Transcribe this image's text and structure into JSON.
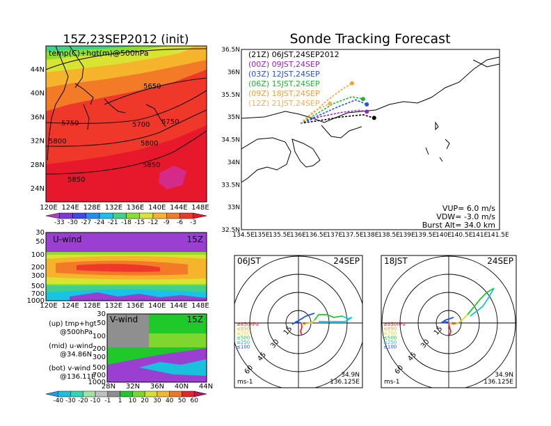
{
  "left": {
    "title": "15Z,23SEP2012 (init)",
    "map_label": "temp(C)+hgt(m)@500hPa",
    "lat_labels": [
      "44N",
      "40N",
      "36N",
      "32N",
      "28N",
      "24N"
    ],
    "lon_labels": [
      "120E",
      "124E",
      "128E",
      "132E",
      "136E",
      "140E",
      "144E",
      "148E"
    ],
    "contour_labels": [
      "5650",
      "5700",
      "5750",
      "5750",
      "5800",
      "5800",
      "5850",
      "5850"
    ],
    "temp_colorbar": {
      "labels": [
        "-33",
        "-30",
        "-27",
        "-24",
        "-21",
        "-18",
        "-15",
        "-12",
        "-9",
        "-6",
        "-3"
      ],
      "colors": [
        "#ad3fc6",
        "#7d38d9",
        "#3f48e8",
        "#1f8ff1",
        "#17c3e6",
        "#3fd08a",
        "#8ddc2e",
        "#d8e431",
        "#f6b42d",
        "#f37a27",
        "#f0382a",
        "#e8182c"
      ]
    },
    "u_panel": {
      "label": "U-wind",
      "time": "15Z",
      "pressure_labels": [
        "30",
        "50",
        "100",
        "200",
        "300",
        "500",
        "700",
        "1000"
      ],
      "lon_labels": [
        "120E",
        "124E",
        "128E",
        "132E",
        "136E",
        "140E",
        "144E",
        "148E"
      ]
    },
    "v_panel": {
      "label": "V-wind",
      "time": "15Z",
      "pressure_labels": [
        "30",
        "50",
        "100",
        "200",
        "300",
        "500",
        "700",
        "1000"
      ],
      "lat_labels": [
        "28N",
        "32N",
        "36N",
        "40N",
        "44N"
      ]
    },
    "legend": [
      {
        "l1": "(up) tmp+hgt",
        "l2": "@500hPa"
      },
      {
        "l1": "(mid) u-wind",
        "l2": "@34.86N"
      },
      {
        "l1": "(bot) v-wind",
        "l2": "@136.11E"
      }
    ],
    "wind_colorbar": {
      "labels": [
        "-40",
        "-30",
        "-20",
        "-10",
        "-1",
        "1",
        "10",
        "20",
        "30",
        "40",
        "50",
        "60"
      ],
      "colors": [
        "#1a9ef0",
        "#19c1dd",
        "#2fd6b2",
        "#9fe3a5",
        "#bfbfbf",
        "#8f8f8f",
        "#1fc92a",
        "#7ed62e",
        "#d4e02f",
        "#f5b72d",
        "#f17628",
        "#e8212b",
        "#b5175a"
      ]
    }
  },
  "track": {
    "title": "Sonde Tracking Forecast",
    "lat_labels": [
      "36.5N",
      "36N",
      "35.5N",
      "35N",
      "34.5N",
      "34N",
      "33.5N",
      "33N",
      "32.5N"
    ],
    "lon_labels": [
      "134.5E",
      "135E",
      "135.5E",
      "136E",
      "136.5E",
      "137E",
      "137.5E",
      "138E",
      "138.5E",
      "139E",
      "139.5E",
      "140E",
      "140.5E",
      "141E",
      "141.5E"
    ],
    "runs": [
      {
        "text": "(21Z)  06JST,24SEP2012",
        "color": "#000000"
      },
      {
        "text": "(00Z)  09JST,24SEP",
        "color": "#a020c8"
      },
      {
        "text": "(03Z)  12JST,24SEP",
        "color": "#1f50f0"
      },
      {
        "text": "(06Z)  15JST,24SEP",
        "color": "#17b82b"
      },
      {
        "text": "(09Z)  18JST,24SEP",
        "color": "#f5a030"
      },
      {
        "text": "(12Z)  21JST,24SEP",
        "color": "#f0b060"
      }
    ],
    "vup": "VUP=  6.0  m/s",
    "vdw": "VDW= -3.0  m/s",
    "burst": "Burst Alt= 34.0  km"
  },
  "hodo1": {
    "time": "06JST",
    "date": "24SEP",
    "ring_labels": [
      "15",
      "30",
      "45",
      "60"
    ],
    "levels": [
      {
        "text": "≥850hPa",
        "color": "#e8212b"
      },
      {
        "text": "≤850",
        "color": "#f5a030"
      },
      {
        "text": "≤700",
        "color": "#d4e02f"
      },
      {
        "text": "≤500",
        "color": "#1fc92a"
      },
      {
        "text": "≤250",
        "color": "#19c1dd"
      },
      {
        "text": "≤100",
        "color": "#1f50f0"
      }
    ],
    "unit": "ms-1",
    "lat": "34.9N",
    "lon": "136.125E"
  },
  "hodo2": {
    "time": "18JST",
    "date": "24SEP",
    "ring_labels": [
      "15",
      "30",
      "45",
      "60"
    ],
    "levels": [
      {
        "text": "≥850hPa",
        "color": "#e8212b"
      },
      {
        "text": "≤850",
        "color": "#f5a030"
      },
      {
        "text": "≤700",
        "color": "#d4e02f"
      },
      {
        "text": "≤500",
        "color": "#1fc92a"
      },
      {
        "text": "≤250",
        "color": "#19c1dd"
      },
      {
        "text": "≤100",
        "color": "#1f50f0"
      }
    ],
    "unit": "ms-1",
    "lat": "34.9N",
    "lon": "136.125E"
  },
  "chart_data": [
    {
      "type": "heatmap",
      "title": "15Z,23SEP2012 (init)",
      "subtitle": "temp(C)+hgt(m)@500hPa",
      "x_ticks": [
        "120E",
        "124E",
        "128E",
        "132E",
        "136E",
        "140E",
        "144E",
        "148E"
      ],
      "y_ticks": [
        "24N",
        "28N",
        "32N",
        "36N",
        "40N",
        "44N"
      ],
      "contours": [
        5650,
        5700,
        5750,
        5800,
        5850
      ],
      "color_levels": [
        -33,
        -30,
        -27,
        -24,
        -21,
        -18,
        -15,
        -12,
        -9,
        -6,
        -3
      ]
    },
    {
      "type": "heatmap",
      "title": "U-wind",
      "time": "15Z",
      "x_ticks": [
        "120E",
        "124E",
        "128E",
        "132E",
        "136E",
        "140E",
        "144E",
        "148E"
      ],
      "y_ticks": [
        "30",
        "50",
        "100",
        "200",
        "300",
        "500",
        "700",
        "1000"
      ]
    },
    {
      "type": "heatmap",
      "title": "V-wind",
      "time": "15Z",
      "x_ticks": [
        "28N",
        "32N",
        "36N",
        "40N",
        "44N"
      ],
      "y_ticks": [
        "30",
        "50",
        "100",
        "200",
        "300",
        "500",
        "700",
        "1000"
      ],
      "color_levels": [
        -40,
        -30,
        -20,
        -10,
        -1,
        1,
        10,
        20,
        30,
        40,
        50,
        60
      ]
    },
    {
      "type": "line",
      "title": "Sonde Tracking Forecast",
      "xlim": [
        134.5,
        141.5
      ],
      "ylim": [
        32.5,
        36.5
      ],
      "series": [
        {
          "name": "(21Z) 06JST,24SEP2012",
          "color": "#000000",
          "x": [
            136.1,
            136.6,
            137.2,
            137.8,
            138.1
          ],
          "y": [
            34.86,
            34.92,
            35.0,
            35.05,
            34.98
          ]
        },
        {
          "name": "(00Z) 09JST,24SEP",
          "color": "#a020c8",
          "x": [
            136.1,
            136.6,
            137.2,
            137.7,
            137.9
          ],
          "y": [
            34.86,
            35.0,
            35.1,
            35.15,
            35.12
          ]
        },
        {
          "name": "(03Z) 12JST,24SEP",
          "color": "#1f50f0",
          "x": [
            136.1,
            136.5,
            137.1,
            137.6,
            137.9
          ],
          "y": [
            34.86,
            35.0,
            35.22,
            35.38,
            35.28
          ]
        },
        {
          "name": "(06Z) 15JST,24SEP",
          "color": "#17b82b",
          "x": [
            136.1,
            136.5,
            137.0,
            137.5,
            137.8
          ],
          "y": [
            34.86,
            35.05,
            35.3,
            35.45,
            35.4
          ]
        },
        {
          "name": "(09Z) 18JST,24SEP",
          "color": "#f5a030",
          "x": [
            136.1,
            136.4,
            136.8,
            137.2,
            137.5
          ],
          "y": [
            34.86,
            35.05,
            35.35,
            35.6,
            35.75
          ]
        },
        {
          "name": "(12Z) 21JST,24SEP",
          "color": "#f0b060",
          "x": [
            136.1,
            136.25,
            136.45,
            136.7,
            136.9
          ],
          "y": [
            34.86,
            34.98,
            35.12,
            35.22,
            35.3
          ]
        }
      ],
      "annotations": [
        "VUP= 6.0 m/s",
        "VDW= -3.0 m/s",
        "Burst Alt= 34.0 km"
      ]
    }
  ]
}
